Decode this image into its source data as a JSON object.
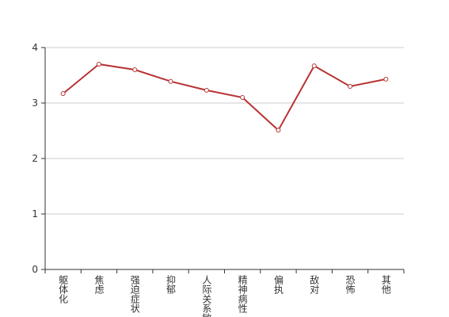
{
  "chart_data": {
    "type": "line",
    "categories": [
      "躯体化",
      "焦虑",
      "强迫症状",
      "抑郁",
      "人际关系敏感",
      "精神病性",
      "偏执",
      "敌对",
      "恐怖",
      "其他"
    ],
    "series": [
      {
        "color": "#b83232",
        "values": [
          3.17,
          3.7,
          3.6,
          3.39,
          3.23,
          3.1,
          2.51,
          3.67,
          3.3,
          3.43
        ]
      }
    ],
    "ylim": [
      0,
      4
    ],
    "yticks": [
      0,
      1,
      2,
      3,
      4
    ],
    "grid": true
  }
}
